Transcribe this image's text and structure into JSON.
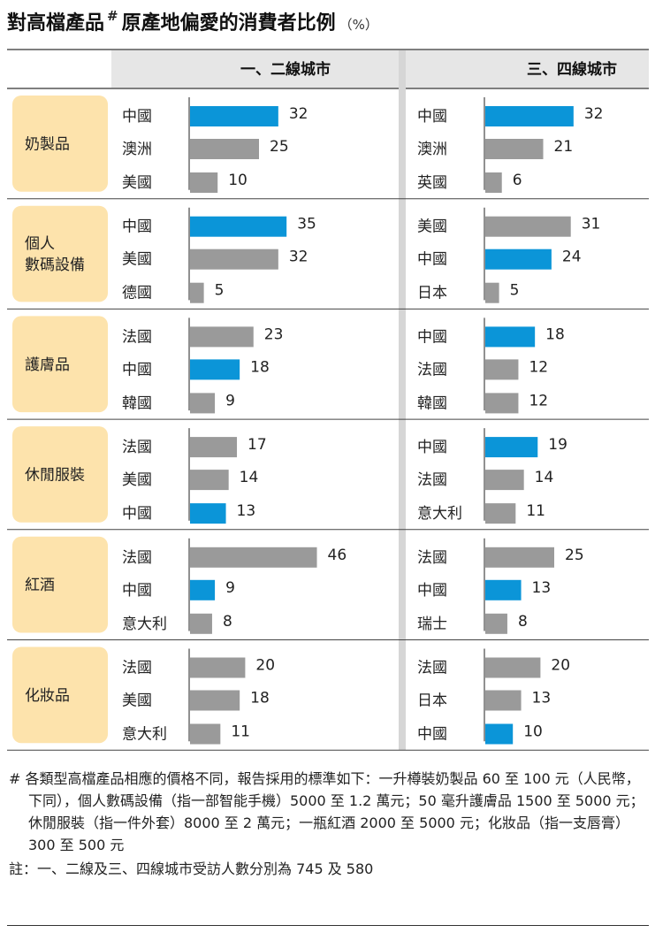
{
  "title": "對高檔產品",
  "title_mark": "#",
  "title_rest": "原產地偏愛的消費者比例",
  "title_unit": "（%）",
  "colors": {
    "highlight": "#0b95d8",
    "other": "#9a9a9a",
    "category_bg": "#fde3ac"
  },
  "chart_data": {
    "type": "bar",
    "unit": "%",
    "columns": [
      "一、二線城市",
      "三、四線城市"
    ],
    "groups": [
      {
        "category": "奶製品",
        "tier12": [
          {
            "country": "中國",
            "value": 32
          },
          {
            "country": "澳洲",
            "value": 25
          },
          {
            "country": "美國",
            "value": 10
          }
        ],
        "tier34": [
          {
            "country": "中國",
            "value": 32
          },
          {
            "country": "澳洲",
            "value": 21
          },
          {
            "country": "英國",
            "value": 6
          }
        ]
      },
      {
        "category": "個人\n數碼設備",
        "tier12": [
          {
            "country": "中國",
            "value": 35
          },
          {
            "country": "美國",
            "value": 32
          },
          {
            "country": "德國",
            "value": 5
          }
        ],
        "tier34": [
          {
            "country": "美國",
            "value": 31
          },
          {
            "country": "中國",
            "value": 24
          },
          {
            "country": "日本",
            "value": 5
          }
        ]
      },
      {
        "category": "護膚品",
        "tier12": [
          {
            "country": "法國",
            "value": 23
          },
          {
            "country": "中國",
            "value": 18
          },
          {
            "country": "韓國",
            "value": 9
          }
        ],
        "tier34": [
          {
            "country": "中國",
            "value": 18
          },
          {
            "country": "法國",
            "value": 12
          },
          {
            "country": "韓國",
            "value": 12
          }
        ]
      },
      {
        "category": "休閒服裝",
        "tier12": [
          {
            "country": "法國",
            "value": 17
          },
          {
            "country": "美國",
            "value": 14
          },
          {
            "country": "中國",
            "value": 13
          }
        ],
        "tier34": [
          {
            "country": "中國",
            "value": 19
          },
          {
            "country": "法國",
            "value": 14
          },
          {
            "country": "意大利",
            "value": 11
          }
        ]
      },
      {
        "category": "紅酒",
        "tier12": [
          {
            "country": "法國",
            "value": 46
          },
          {
            "country": "中國",
            "value": 9
          },
          {
            "country": "意大利",
            "value": 8
          }
        ],
        "tier34": [
          {
            "country": "法國",
            "value": 25
          },
          {
            "country": "中國",
            "value": 13
          },
          {
            "country": "瑞士",
            "value": 8
          }
        ]
      },
      {
        "category": "化妝品",
        "tier12": [
          {
            "country": "法國",
            "value": 20
          },
          {
            "country": "美國",
            "value": 18
          },
          {
            "country": "意大利",
            "value": 11
          }
        ],
        "tier34": [
          {
            "country": "法國",
            "value": 20
          },
          {
            "country": "日本",
            "value": 13
          },
          {
            "country": "中國",
            "value": 10
          }
        ]
      }
    ]
  },
  "footnote": "# 各類型高檔產品相應的價格不同，報告採用的標準如下：一升樽裝奶製品 60 至 100 元（人民幣，下同），個人數碼設備（指一部智能手機）5000 至 1.2 萬元；50 毫升護膚品 1500 至 5000 元；休閒服裝（指一件外套）8000 至 2 萬元；一瓶紅酒 2000 至 5000 元；化妝品（指一支唇膏）300 至 500 元",
  "note": "註：一、二線及三、四線城市受訪人數分別為 745 及 580"
}
